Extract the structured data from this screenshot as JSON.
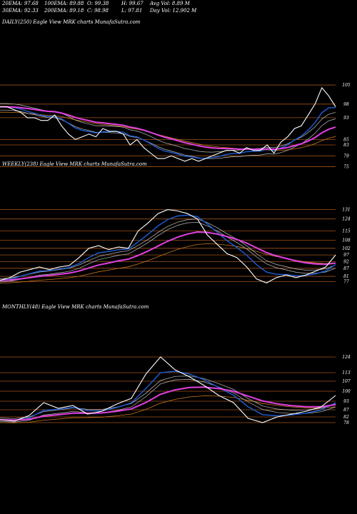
{
  "header": {
    "row1": [
      {
        "label": "20EMA: 97.68"
      },
      {
        "label": "100EMA: 89.88"
      },
      {
        "label": "O: 99.38"
      },
      {
        "label": "H: 99.67"
      },
      {
        "label": "Avg Vol: 8.89  M"
      }
    ],
    "row2": [
      {
        "label": "30EMA: 92.33"
      },
      {
        "label": "200EMA: 89.18"
      },
      {
        "label": "C: 98.98"
      },
      {
        "label": "L: 97.81"
      },
      {
        "label": "Day Vol: 12.902  M"
      }
    ]
  },
  "colors": {
    "background": "#000000",
    "price": "#ffffff",
    "ema_short": "#1f5fd6",
    "ema_long": "#e040e0",
    "ema_mid": "#c0c0c0",
    "ema_orange": "#c87820",
    "gridline": "#a0521a"
  },
  "chart_data": [
    {
      "type": "line",
      "title": "DAILY(250) Eagle  View  MRK charts MunafaSutra.com",
      "yticks": [
        105,
        98,
        93,
        85,
        83,
        79,
        75
      ],
      "series": [
        {
          "values": [
            97,
            97,
            96,
            95,
            93,
            93,
            92,
            92,
            94,
            90,
            87,
            85,
            86,
            87,
            86,
            89,
            88,
            88,
            87,
            83,
            85,
            82,
            80,
            78,
            78,
            79,
            78,
            77,
            78,
            77,
            78,
            79,
            80,
            81,
            81,
            80,
            82,
            81,
            81,
            83,
            80,
            84,
            86,
            89,
            90,
            94,
            98,
            104,
            101,
            97
          ]
        }
      ]
    },
    {
      "type": "line",
      "title": "WEEKLY(238) Eagle  View  MRK charts MunafaSutra.com",
      "yticks": [
        131,
        124,
        115,
        108,
        102,
        97,
        92,
        87,
        81,
        77
      ],
      "series": [
        {
          "values": [
            78,
            80,
            84,
            86,
            88,
            86,
            88,
            89,
            95,
            102,
            104,
            101,
            103,
            102,
            115,
            121,
            128,
            131,
            130,
            128,
            124,
            112,
            105,
            98,
            95,
            88,
            79,
            76,
            80,
            82,
            80,
            82,
            85,
            88,
            97
          ]
        }
      ]
    },
    {
      "type": "line",
      "title": "MONTHLY(48) Eagle  View  MRK charts MunafaSutra.com",
      "yticks": [
        124,
        113,
        107,
        100,
        93,
        87,
        82,
        78
      ],
      "series": [
        {
          "values": [
            80,
            79,
            83,
            92,
            88,
            90,
            84,
            86,
            91,
            95,
            112,
            124,
            115,
            110,
            104,
            97,
            92,
            81,
            78,
            82,
            84,
            86,
            89,
            97
          ]
        }
      ]
    }
  ]
}
